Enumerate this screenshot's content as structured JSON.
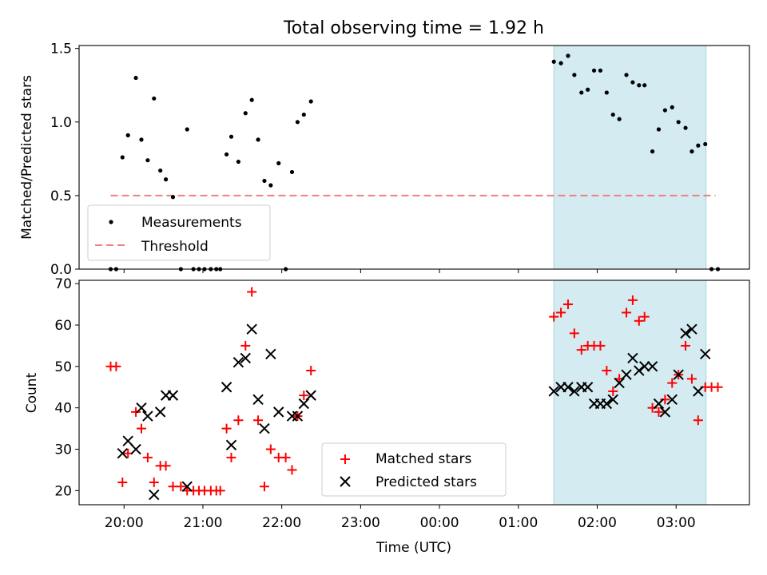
{
  "figure_title": "Total observing time = 1.92 h",
  "chart_data": [
    {
      "type": "scatter",
      "ylabel": "Matched/Predicted stars",
      "ylim": [
        0,
        1.52
      ],
      "yticks": [
        "0.0",
        "0.5",
        "1.0",
        "1.5"
      ],
      "ytick_values": [
        0,
        0.5,
        1.0,
        1.5
      ],
      "highlight": {
        "x0": 25.45,
        "x1": 27.38,
        "color": "#d4ebf1"
      },
      "threshold": {
        "y": 0.5,
        "x0": 19.83,
        "x1": 27.5,
        "color": "#f08080"
      },
      "legend": {
        "placement": "lower left",
        "entries": [
          "Measurements",
          "Threshold"
        ]
      },
      "series": [
        {
          "name": "Measurements",
          "color": "#000000",
          "points": [
            [
              19.83,
              0
            ],
            [
              19.9,
              0
            ],
            [
              19.98,
              0.76
            ],
            [
              20.05,
              0.91
            ],
            [
              20.15,
              1.3
            ],
            [
              20.22,
              0.88
            ],
            [
              20.3,
              0.74
            ],
            [
              20.38,
              1.16
            ],
            [
              20.46,
              0.67
            ],
            [
              20.53,
              0.61
            ],
            [
              20.62,
              0.49
            ],
            [
              20.72,
              0
            ],
            [
              20.8,
              0.95
            ],
            [
              20.88,
              0
            ],
            [
              20.95,
              0
            ],
            [
              21.02,
              0
            ],
            [
              21.1,
              0
            ],
            [
              21.17,
              0
            ],
            [
              21.22,
              0
            ],
            [
              21.3,
              0.78
            ],
            [
              21.36,
              0.9
            ],
            [
              21.45,
              0.73
            ],
            [
              21.54,
              1.06
            ],
            [
              21.62,
              1.15
            ],
            [
              21.7,
              0.88
            ],
            [
              21.78,
              0.6
            ],
            [
              21.86,
              0.57
            ],
            [
              21.96,
              0.72
            ],
            [
              22.05,
              0
            ],
            [
              22.13,
              0.66
            ],
            [
              22.2,
              1.0
            ],
            [
              22.28,
              1.05
            ],
            [
              22.37,
              1.14
            ],
            [
              25.45,
              1.41
            ],
            [
              25.54,
              1.4
            ],
            [
              25.63,
              1.45
            ],
            [
              25.71,
              1.32
            ],
            [
              25.8,
              1.2
            ],
            [
              25.88,
              1.22
            ],
            [
              25.96,
              1.35
            ],
            [
              26.04,
              1.35
            ],
            [
              26.12,
              1.2
            ],
            [
              26.2,
              1.05
            ],
            [
              26.28,
              1.02
            ],
            [
              26.37,
              1.32
            ],
            [
              26.45,
              1.27
            ],
            [
              26.53,
              1.25
            ],
            [
              26.6,
              1.25
            ],
            [
              26.7,
              0.8
            ],
            [
              26.78,
              0.95
            ],
            [
              26.86,
              1.08
            ],
            [
              26.95,
              1.1
            ],
            [
              27.03,
              1.0
            ],
            [
              27.12,
              0.96
            ],
            [
              27.2,
              0.8
            ],
            [
              27.28,
              0.84
            ],
            [
              27.37,
              0.85
            ],
            [
              27.45,
              0
            ],
            [
              27.53,
              0
            ]
          ]
        }
      ]
    },
    {
      "type": "scatter",
      "ylabel": "Count",
      "xlabel": "Time (UTC)",
      "ylim": [
        16.6,
        70.8
      ],
      "yticks": [
        "20",
        "30",
        "40",
        "50",
        "60",
        "70"
      ],
      "ytick_values": [
        20,
        30,
        40,
        50,
        60,
        70
      ],
      "xlim": [
        19.43,
        27.93
      ],
      "xticks": [
        "20:00",
        "21:00",
        "22:00",
        "23:00",
        "00:00",
        "01:00",
        "02:00",
        "03:00"
      ],
      "xtick_values": [
        20,
        21,
        22,
        23,
        24,
        25,
        26,
        27
      ],
      "highlight": {
        "x0": 25.45,
        "x1": 27.38,
        "color": "#d4ebf1"
      },
      "legend": {
        "placement": "lower center",
        "entries": [
          "Matched stars",
          "Predicted stars"
        ]
      },
      "series": [
        {
          "name": "Matched stars",
          "marker": "+",
          "color": "#ff0000",
          "points": [
            [
              19.83,
              50
            ],
            [
              19.9,
              50
            ],
            [
              19.98,
              22
            ],
            [
              20.05,
              29
            ],
            [
              20.15,
              39
            ],
            [
              20.22,
              35
            ],
            [
              20.3,
              28
            ],
            [
              20.38,
              22
            ],
            [
              20.46,
              26
            ],
            [
              20.53,
              26
            ],
            [
              20.62,
              21
            ],
            [
              20.72,
              21
            ],
            [
              20.8,
              20
            ],
            [
              20.88,
              20
            ],
            [
              20.95,
              20
            ],
            [
              21.02,
              20
            ],
            [
              21.1,
              20
            ],
            [
              21.17,
              20
            ],
            [
              21.22,
              20
            ],
            [
              21.3,
              35
            ],
            [
              21.36,
              28
            ],
            [
              21.45,
              37
            ],
            [
              21.54,
              55
            ],
            [
              21.62,
              68
            ],
            [
              21.7,
              37
            ],
            [
              21.78,
              21
            ],
            [
              21.86,
              30
            ],
            [
              21.96,
              28
            ],
            [
              22.05,
              28
            ],
            [
              22.13,
              25
            ],
            [
              22.2,
              38
            ],
            [
              22.28,
              43
            ],
            [
              22.37,
              49
            ],
            [
              25.45,
              62
            ],
            [
              25.54,
              63
            ],
            [
              25.63,
              65
            ],
            [
              25.71,
              58
            ],
            [
              25.8,
              54
            ],
            [
              25.88,
              55
            ],
            [
              25.96,
              55
            ],
            [
              26.04,
              55
            ],
            [
              26.12,
              49
            ],
            [
              26.2,
              44
            ],
            [
              26.28,
              47
            ],
            [
              26.37,
              63
            ],
            [
              26.45,
              66
            ],
            [
              26.53,
              61
            ],
            [
              26.6,
              62
            ],
            [
              26.7,
              40
            ],
            [
              26.78,
              39
            ],
            [
              26.86,
              42
            ],
            [
              26.95,
              46
            ],
            [
              27.03,
              48
            ],
            [
              27.12,
              55
            ],
            [
              27.2,
              47
            ],
            [
              27.28,
              37
            ],
            [
              27.37,
              45
            ],
            [
              27.45,
              45
            ],
            [
              27.53,
              45
            ]
          ]
        },
        {
          "name": "Predicted stars",
          "marker": "x",
          "color": "#000000",
          "points": [
            [
              19.98,
              29
            ],
            [
              20.05,
              32
            ],
            [
              20.15,
              30
            ],
            [
              20.22,
              40
            ],
            [
              20.3,
              38
            ],
            [
              20.38,
              19
            ],
            [
              20.46,
              39
            ],
            [
              20.53,
              43
            ],
            [
              20.62,
              43
            ],
            [
              20.8,
              21
            ],
            [
              21.3,
              45
            ],
            [
              21.36,
              31
            ],
            [
              21.45,
              51
            ],
            [
              21.54,
              52
            ],
            [
              21.62,
              59
            ],
            [
              21.7,
              42
            ],
            [
              21.78,
              35
            ],
            [
              21.86,
              53
            ],
            [
              21.96,
              39
            ],
            [
              22.13,
              38
            ],
            [
              22.2,
              38
            ],
            [
              22.28,
              41
            ],
            [
              22.37,
              43
            ],
            [
              25.45,
              44
            ],
            [
              25.54,
              45
            ],
            [
              25.63,
              45
            ],
            [
              25.71,
              44
            ],
            [
              25.8,
              45
            ],
            [
              25.88,
              45
            ],
            [
              25.96,
              41
            ],
            [
              26.04,
              41
            ],
            [
              26.12,
              41
            ],
            [
              26.2,
              42
            ],
            [
              26.28,
              46
            ],
            [
              26.37,
              48
            ],
            [
              26.45,
              52
            ],
            [
              26.53,
              49
            ],
            [
              26.6,
              50
            ],
            [
              26.7,
              50
            ],
            [
              26.78,
              41
            ],
            [
              26.86,
              39
            ],
            [
              26.95,
              42
            ],
            [
              27.03,
              48
            ],
            [
              27.12,
              58
            ],
            [
              27.2,
              59
            ],
            [
              27.28,
              44
            ],
            [
              27.37,
              53
            ]
          ]
        }
      ]
    }
  ]
}
